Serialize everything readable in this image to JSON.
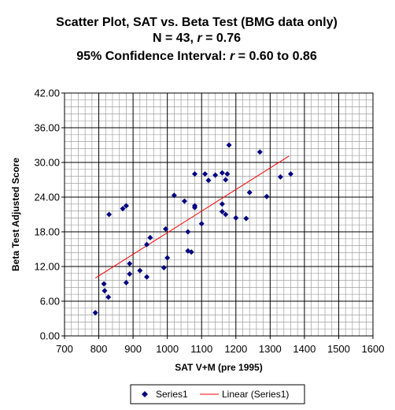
{
  "chart_data": {
    "type": "scatter",
    "title_lines": [
      "Scatter Plot, SAT vs. Beta Test (BMG data only)",
      [
        "N = 43, ",
        "r",
        " = 0.76"
      ],
      [
        "95% Confidence Interval:  ",
        "r",
        " = 0.60 to 0.86"
      ]
    ],
    "xlabel": "SAT V+M (pre 1995)",
    "ylabel": "Beta Test Adjusted Score",
    "xlim": [
      700,
      1600
    ],
    "ylim": [
      0,
      42
    ],
    "x_major_ticks": [
      "700",
      "800",
      "900",
      "1000",
      "1100",
      "1200",
      "1300",
      "1400",
      "1500",
      "1600"
    ],
    "y_major_ticks": [
      "0.00",
      "6.00",
      "12.00",
      "18.00",
      "24.00",
      "30.00",
      "36.00",
      "42.00"
    ],
    "x_major_step": 100,
    "x_minor_step": 20,
    "y_major_step": 6,
    "y_minor_step": 1.2,
    "grid": true,
    "legend_position": "bottom",
    "series": [
      {
        "name": "Series1",
        "kind": "points",
        "color": "#000080",
        "marker": "diamond",
        "points": [
          [
            790,
            4.0
          ],
          [
            815,
            9.0
          ],
          [
            817,
            7.8
          ],
          [
            828,
            6.7
          ],
          [
            830,
            21.0
          ],
          [
            870,
            22.0
          ],
          [
            880,
            22.5
          ],
          [
            880,
            9.2
          ],
          [
            890,
            12.5
          ],
          [
            890,
            10.7
          ],
          [
            920,
            11.3
          ],
          [
            940,
            10.2
          ],
          [
            940,
            15.8
          ],
          [
            950,
            17.0
          ],
          [
            990,
            11.8
          ],
          [
            995,
            18.5
          ],
          [
            1000,
            13.5
          ],
          [
            1020,
            24.3
          ],
          [
            1050,
            23.3
          ],
          [
            1060,
            18.0
          ],
          [
            1060,
            14.7
          ],
          [
            1070,
            14.5
          ],
          [
            1080,
            28.0
          ],
          [
            1080,
            22.5
          ],
          [
            1080,
            22.2
          ],
          [
            1100,
            19.4
          ],
          [
            1110,
            28.0
          ],
          [
            1120,
            26.9
          ],
          [
            1140,
            27.8
          ],
          [
            1160,
            28.2
          ],
          [
            1160,
            22.8
          ],
          [
            1160,
            21.5
          ],
          [
            1170,
            27.0
          ],
          [
            1170,
            21.0
          ],
          [
            1175,
            28.0
          ],
          [
            1180,
            33.0
          ],
          [
            1200,
            20.4
          ],
          [
            1230,
            20.3
          ],
          [
            1240,
            24.8
          ],
          [
            1270,
            31.8
          ],
          [
            1290,
            24.1
          ],
          [
            1330,
            27.5
          ],
          [
            1360,
            28.0
          ]
        ]
      },
      {
        "name": "Linear (Series1)",
        "kind": "trendline",
        "color": "#ff0000",
        "x": [
          790,
          1355
        ],
        "y": [
          10.0,
          31.1
        ]
      }
    ]
  }
}
